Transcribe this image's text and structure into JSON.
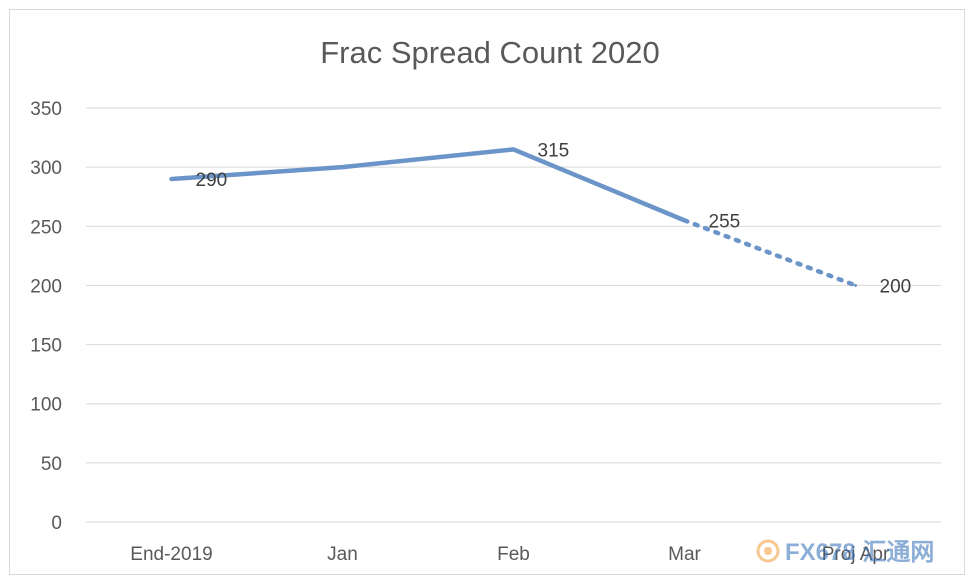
{
  "chart_data": {
    "type": "line",
    "title": "Frac Spread Count 2020",
    "categories": [
      "End-2019",
      "Jan",
      "Feb",
      "Mar",
      "Proj Apr"
    ],
    "series": [
      {
        "values": [
          290,
          300,
          315,
          255,
          200
        ],
        "data_labels": [
          "290",
          "",
          "315",
          "255",
          "200"
        ],
        "dotted_from_index": 3
      }
    ],
    "yticks": [
      0,
      50,
      100,
      150,
      200,
      250,
      300,
      350
    ],
    "ylim": [
      0,
      350
    ],
    "grid": true,
    "legend": "none",
    "line_color": "#6b95c9"
  },
  "watermark": {
    "text": "FX678 汇通网",
    "orange": "#f39a3a",
    "blue": "#2f6db5"
  }
}
